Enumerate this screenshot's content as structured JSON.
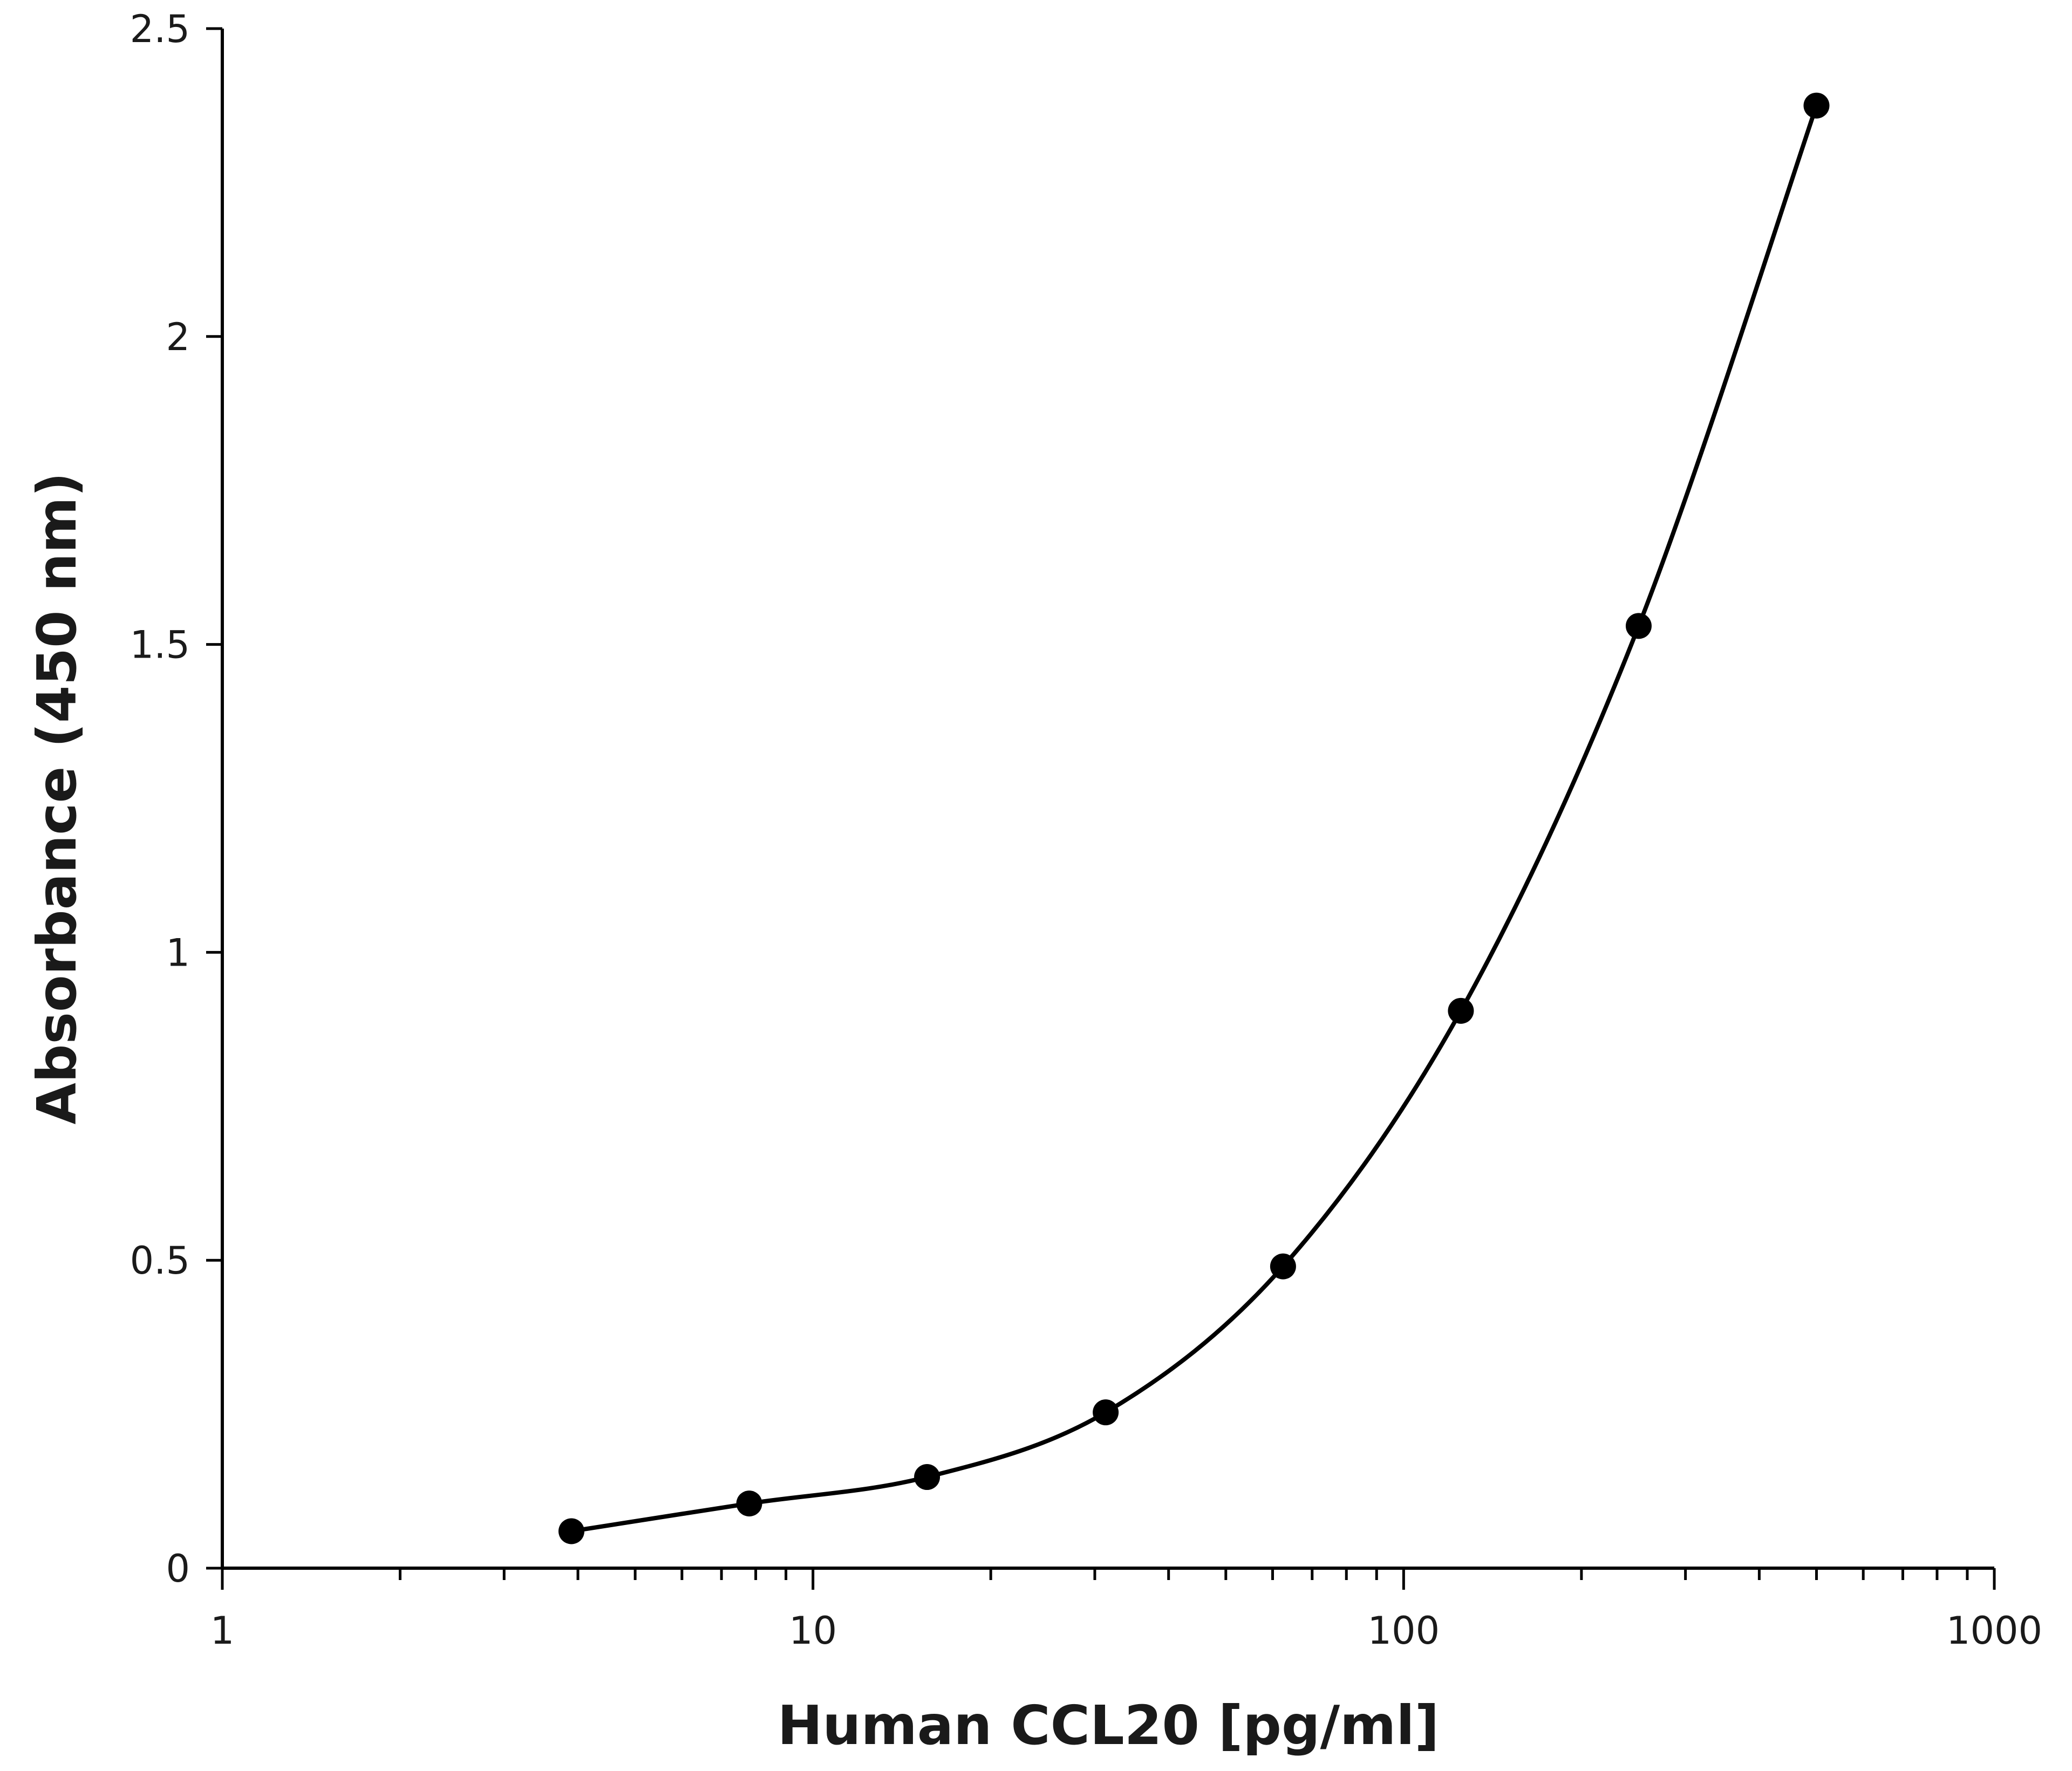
{
  "chart_data": {
    "type": "line",
    "xlabel": "Human CCL20 [pg/ml]",
    "ylabel": "Absorbance (450 nm)",
    "x_scale": "log",
    "xlim": [
      1,
      1000
    ],
    "ylim": [
      0,
      2.5
    ],
    "x_ticks": [
      {
        "value": 1,
        "label": "1"
      },
      {
        "value": 10,
        "label": "10"
      },
      {
        "value": 100,
        "label": "100"
      },
      {
        "value": 1000,
        "label": "1000"
      }
    ],
    "y_ticks": [
      {
        "value": 0,
        "label": "0"
      },
      {
        "value": 0.5,
        "label": "0.5"
      },
      {
        "value": 1,
        "label": "1"
      },
      {
        "value": 1.5,
        "label": "1.5"
      },
      {
        "value": 2,
        "label": "2"
      },
      {
        "value": 2.5,
        "label": "2.5"
      }
    ],
    "grid": false,
    "legend": "none",
    "smooth_line": true,
    "marker": "filled-circle",
    "line_color": "#000000",
    "series": [
      {
        "x": [
          3.9,
          7.8,
          15.6,
          31.3,
          62.5,
          125,
          250,
          500
        ],
        "y": [
          0.06,
          0.105,
          0.148,
          0.253,
          0.49,
          0.905,
          1.53,
          2.375
        ]
      }
    ]
  }
}
